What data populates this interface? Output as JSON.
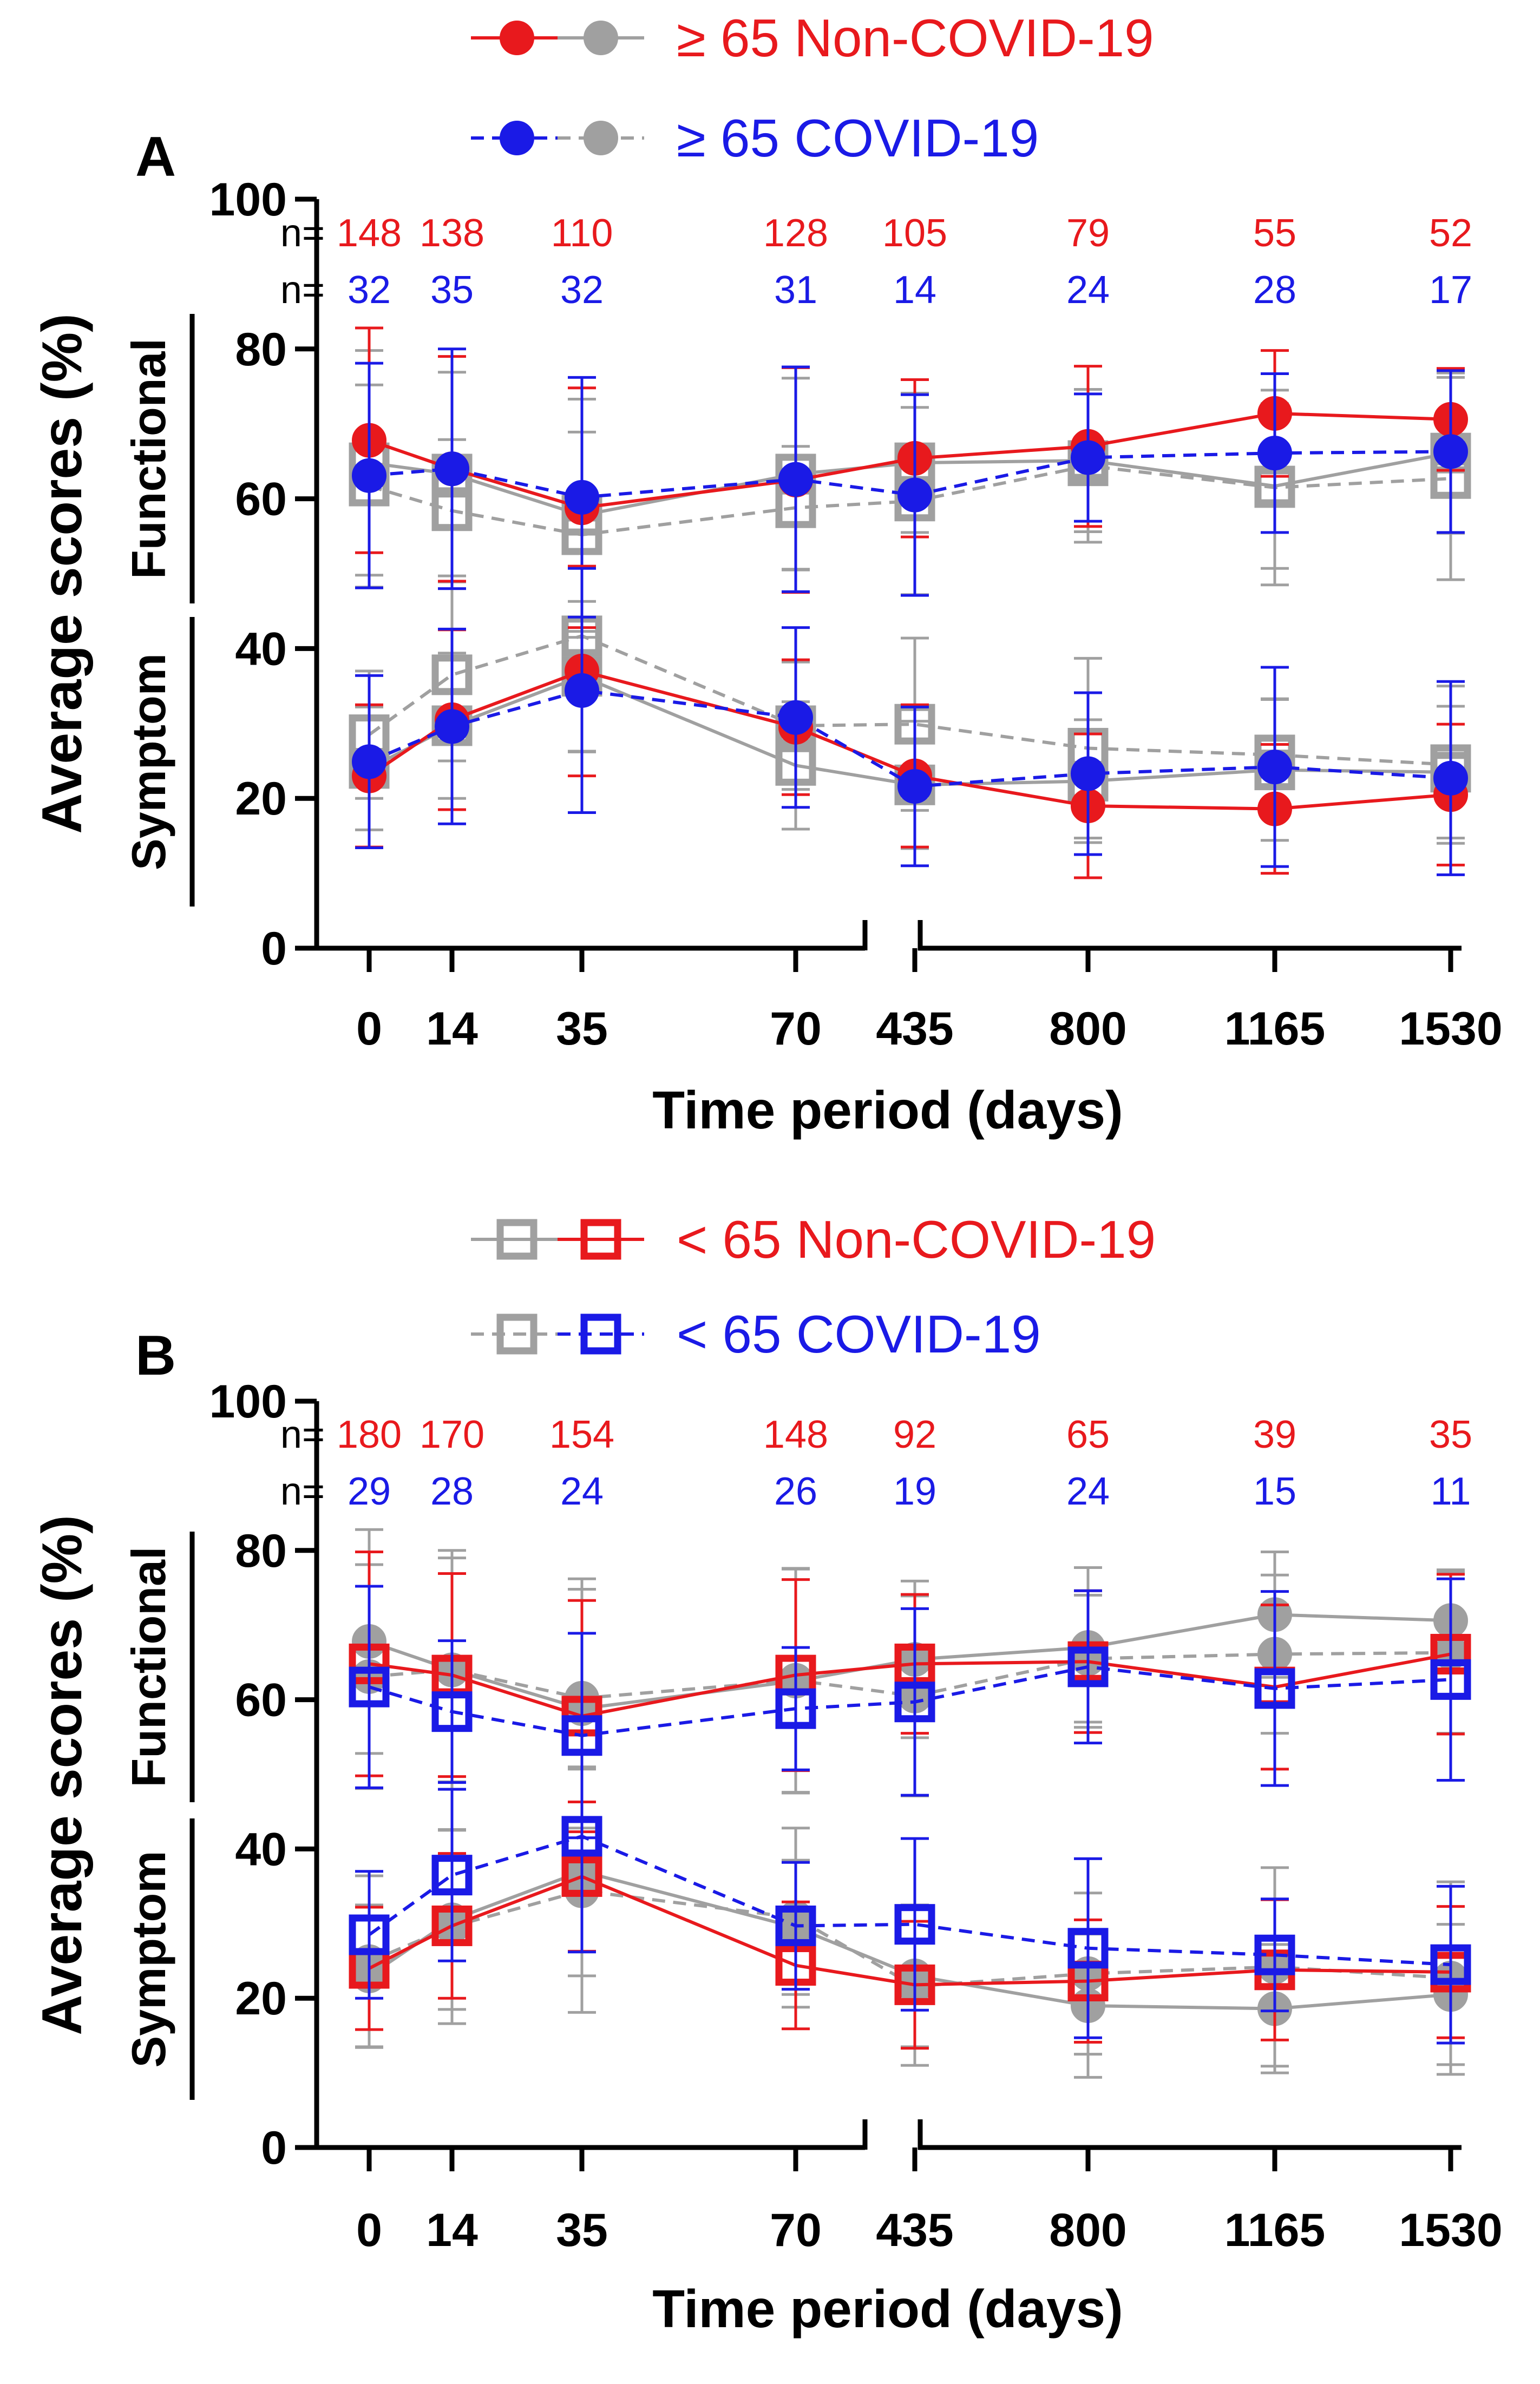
{
  "chart_data": [
    {
      "type": "line",
      "panel": "A",
      "x_ticks": [
        "0",
        "14",
        "35",
        "70",
        "435",
        "800",
        "1165",
        "1530"
      ],
      "xlabel": "Time period (days)",
      "ylabel": "Average scores (%)",
      "ylim": [
        0,
        100
      ],
      "y_ticks": [
        "0",
        "20",
        "40",
        "60",
        "80",
        "100"
      ],
      "group_labels": {
        "functional": "Functional",
        "symptom": "Symptom"
      },
      "n_label": "n=",
      "n_rows": [
        {
          "color": "#e8191d",
          "values": [
            "148",
            "138",
            "110",
            "128",
            "105",
            "79",
            "55",
            "52"
          ]
        },
        {
          "color": "#1a1ae6",
          "values": [
            "32",
            "35",
            "32",
            "31",
            "14",
            "24",
            "28",
            "17"
          ]
        }
      ],
      "legend": [
        {
          "label": "≥ 65 Non-COVID-19",
          "color": "#e8191d",
          "dash": false,
          "marker": "circle"
        },
        {
          "label": "≥ 65 COVID-19",
          "color": "#1a1ae6",
          "dash": true,
          "marker": "circle"
        }
      ],
      "series": [
        {
          "name": "≥ 65 Non-COVID-19 Functional",
          "color": "#e8191d",
          "dash": false,
          "marker": "circle",
          "values": [
            67.8,
            64,
            58.8,
            62.5,
            65.4,
            67,
            71.4,
            70.6
          ],
          "err": [
            15,
            15,
            16,
            15,
            10.5,
            10.7,
            8.4,
            6.8
          ]
        },
        {
          "name": "≥ 65 COVID-19 Functional",
          "color": "#1a1ae6",
          "dash": true,
          "marker": "circle",
          "values": [
            63.1,
            64,
            60.2,
            62.6,
            60.5,
            65.5,
            66.1,
            66.3
          ],
          "err": [
            15,
            16,
            16,
            15,
            13.4,
            8.5,
            10.6,
            10.8
          ]
        },
        {
          "name": "< 65 Non-COVID-19 Functional",
          "color": "#a0a0a0",
          "dash": false,
          "marker": "square",
          "values": [
            64.8,
            63.3,
            57.8,
            63.3,
            64.8,
            65.1,
            61.7,
            66.1
          ],
          "err": [
            15,
            13.6,
            15.5,
            12.8,
            9.3,
            9.5,
            11,
            10.7
          ]
        },
        {
          "name": "< 65 COVID-19 Functional",
          "color": "#a0a0a0",
          "dash": true,
          "marker": "square",
          "values": [
            61.7,
            58.4,
            55.2,
            58.8,
            59.7,
            64.4,
            61.5,
            62.7
          ],
          "err": [
            13.5,
            9.5,
            13.7,
            8.2,
            12.5,
            10.2,
            13,
            13.5
          ]
        },
        {
          "name": "≥ 65 Non-COVID-19 Symptom",
          "color": "#e8191d",
          "dash": false,
          "marker": "circle",
          "values": [
            23,
            30.5,
            37,
            29.5,
            23,
            19,
            18.6,
            20.5
          ],
          "err": [
            9.5,
            12,
            14,
            9,
            9.5,
            9.6,
            8.6,
            9.4
          ]
        },
        {
          "name": "≥ 65 COVID-19 Symptom",
          "color": "#1a1ae6",
          "dash": true,
          "marker": "circle",
          "values": [
            24.9,
            29.6,
            34.4,
            30.8,
            21.6,
            23.3,
            24.2,
            22.7
          ],
          "err": [
            11.5,
            13,
            16.3,
            12,
            10.6,
            10.8,
            13.3,
            12.9
          ]
        },
        {
          "name": "< 65 Non-COVID-19 Symptom",
          "color": "#a0a0a0",
          "dash": false,
          "marker": "square",
          "values": [
            24,
            29.7,
            36.3,
            24.4,
            21.8,
            22.3,
            23.8,
            23.5
          ],
          "err": [
            8.2,
            9.7,
            10,
            8.5,
            8.5,
            8.2,
            9.4,
            8.8
          ]
        },
        {
          "name": "< 65 COVID-19 Symptom",
          "color": "#a0a0a0",
          "dash": true,
          "marker": "square",
          "values": [
            28.5,
            36.5,
            41.7,
            29.7,
            29.9,
            26.7,
            25.8,
            24.5
          ],
          "err": [
            8.5,
            11.5,
            15.5,
            8.5,
            11.5,
            12,
            7.5,
            10.5
          ]
        }
      ]
    },
    {
      "type": "line",
      "panel": "B",
      "x_ticks": [
        "0",
        "14",
        "35",
        "70",
        "435",
        "800",
        "1165",
        "1530"
      ],
      "xlabel": "Time period (days)",
      "ylabel": "Average scores (%)",
      "ylim": [
        0,
        100
      ],
      "y_ticks": [
        "0",
        "20",
        "40",
        "60",
        "80",
        "100"
      ],
      "group_labels": {
        "functional": "Functional",
        "symptom": "Symptom"
      },
      "n_label": "n=",
      "n_rows": [
        {
          "color": "#e8191d",
          "values": [
            "180",
            "170",
            "154",
            "148",
            "92",
            "65",
            "39",
            "35"
          ]
        },
        {
          "color": "#1a1ae6",
          "values": [
            "29",
            "28",
            "24",
            "26",
            "19",
            "24",
            "15",
            "11"
          ]
        }
      ],
      "legend": [
        {
          "label": "< 65 Non-COVID-19",
          "color": "#e8191d",
          "dash": false,
          "marker": "square"
        },
        {
          "label": "< 65 COVID-19",
          "color": "#1a1ae6",
          "dash": true,
          "marker": "square"
        }
      ],
      "series": [
        {
          "name": "≥ 65 Non-COVID-19 Functional",
          "color": "#a0a0a0",
          "dash": false,
          "marker": "circle",
          "values": [
            67.8,
            64,
            58.8,
            62.5,
            65.4,
            67,
            71.4,
            70.6
          ],
          "err": [
            15,
            15,
            16,
            15,
            10.5,
            10.7,
            8.4,
            6.8
          ]
        },
        {
          "name": "≥ 65 COVID-19 Functional",
          "color": "#a0a0a0",
          "dash": true,
          "marker": "circle",
          "values": [
            63.1,
            64,
            60.2,
            62.6,
            60.5,
            65.5,
            66.1,
            66.3
          ],
          "err": [
            15,
            16,
            16,
            15,
            13.4,
            8.5,
            10.6,
            10.8
          ]
        },
        {
          "name": "< 65 Non-COVID-19 Functional",
          "color": "#e8191d",
          "dash": false,
          "marker": "square",
          "values": [
            64.8,
            63.3,
            57.8,
            63.3,
            64.8,
            65.1,
            61.7,
            66.1
          ],
          "err": [
            15,
            13.6,
            15.5,
            12.8,
            9.3,
            9.5,
            11,
            10.7
          ]
        },
        {
          "name": "< 65 COVID-19 Functional",
          "color": "#1a1ae6",
          "dash": true,
          "marker": "square",
          "values": [
            61.7,
            58.4,
            55.2,
            58.8,
            59.7,
            64.4,
            61.5,
            62.7
          ],
          "err": [
            13.5,
            9.5,
            13.7,
            8.2,
            12.5,
            10.2,
            13,
            13.5
          ]
        },
        {
          "name": "≥ 65 Non-COVID-19 Symptom",
          "color": "#a0a0a0",
          "dash": false,
          "marker": "circle",
          "values": [
            23,
            30.5,
            37,
            29.5,
            23,
            19,
            18.6,
            20.5
          ],
          "err": [
            9.5,
            12,
            14,
            9,
            9.5,
            9.6,
            8.6,
            9.4
          ]
        },
        {
          "name": "≥ 65 COVID-19 Symptom",
          "color": "#a0a0a0",
          "dash": true,
          "marker": "circle",
          "values": [
            24.9,
            29.6,
            34.4,
            30.8,
            21.6,
            23.3,
            24.2,
            22.7
          ],
          "err": [
            11.5,
            13,
            16.3,
            12,
            10.6,
            10.8,
            13.3,
            12.9
          ]
        },
        {
          "name": "< 65 Non-COVID-19 Symptom",
          "color": "#e8191d",
          "dash": false,
          "marker": "square",
          "values": [
            24,
            29.7,
            36.3,
            24.4,
            21.8,
            22.3,
            23.8,
            23.5
          ],
          "err": [
            8.2,
            9.7,
            10,
            8.5,
            8.5,
            8.2,
            9.4,
            8.8
          ]
        },
        {
          "name": "< 65 COVID-19 Symptom",
          "color": "#1a1ae6",
          "dash": true,
          "marker": "square",
          "values": [
            28.5,
            36.5,
            41.7,
            29.7,
            29.9,
            26.7,
            25.8,
            24.5
          ],
          "err": [
            8.5,
            11.5,
            15.5,
            8.5,
            11.5,
            12,
            7.5,
            10.5
          ]
        }
      ]
    }
  ]
}
